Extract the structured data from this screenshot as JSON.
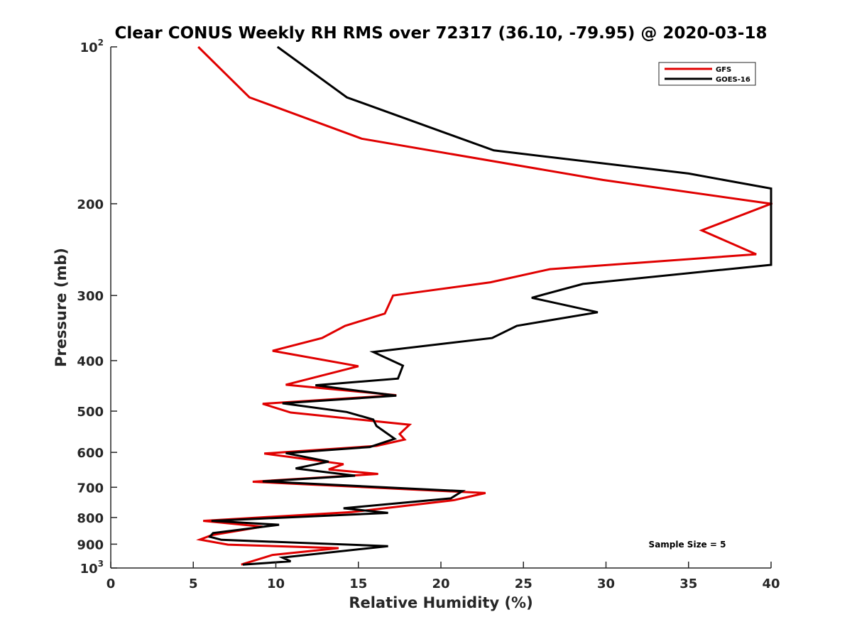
{
  "chart_data": {
    "type": "line",
    "title": "Clear CONUS Weekly RH RMS over 72317 (36.10, -79.95) @ 2020-03-18",
    "xlabel": "Relative Humidity (%)",
    "ylabel": "Pressure (mb)",
    "xlim": [
      0,
      40
    ],
    "ylim": [
      100,
      1000
    ],
    "yscale": "log",
    "y_reversed": true,
    "x_ticks": [
      0,
      5,
      10,
      15,
      20,
      25,
      30,
      35,
      40
    ],
    "y_ticks": [
      100,
      200,
      300,
      400,
      500,
      600,
      700,
      800,
      900,
      1000
    ],
    "y_tick_labels": [
      {
        "base": "10",
        "sup": "2"
      },
      {
        "base": "200",
        "sup": ""
      },
      {
        "base": "300",
        "sup": ""
      },
      {
        "base": "400",
        "sup": ""
      },
      {
        "base": "500",
        "sup": ""
      },
      {
        "base": "600",
        "sup": ""
      },
      {
        "base": "700",
        "sup": ""
      },
      {
        "base": "800",
        "sup": ""
      },
      {
        "base": "900",
        "sup": ""
      },
      {
        "base": "10",
        "sup": "3"
      }
    ],
    "grid": false,
    "legend_position": "top-right",
    "annotation": "Sample Size = 5",
    "series": [
      {
        "name": "GFS",
        "color": "#e00000",
        "points": [
          [
            5.3,
            100
          ],
          [
            8.4,
            125
          ],
          [
            15.2,
            150
          ],
          [
            29.8,
            180
          ],
          [
            40,
            200
          ],
          [
            35.8,
            225
          ],
          [
            39.1,
            250
          ],
          [
            26.6,
            267
          ],
          [
            23,
            283
          ],
          [
            17.1,
            300
          ],
          [
            16.6,
            325
          ],
          [
            14.2,
            343
          ],
          [
            12.8,
            362
          ],
          [
            9.8,
            383
          ],
          [
            15.0,
            410
          ],
          [
            10.6,
            445
          ],
          [
            17.3,
            466
          ],
          [
            9.2,
            484
          ],
          [
            10.9,
            503
          ],
          [
            18.1,
            531
          ],
          [
            17.5,
            553
          ],
          [
            17.8,
            567
          ],
          [
            16.1,
            583
          ],
          [
            9.3,
            603
          ],
          [
            14.1,
            632
          ],
          [
            13.2,
            647
          ],
          [
            16.2,
            660
          ],
          [
            8.6,
            683
          ],
          [
            22.7,
            718
          ],
          [
            20.8,
            741
          ],
          [
            14.6,
            781
          ],
          [
            5.6,
            812
          ],
          [
            9.2,
            833
          ],
          [
            6.1,
            865
          ],
          [
            5.4,
            882
          ],
          [
            7.1,
            902
          ],
          [
            13.8,
            916
          ],
          [
            9.8,
            944
          ],
          [
            7.9,
            985
          ]
        ]
      },
      {
        "name": "GOES-16",
        "color": "#000000",
        "points": [
          [
            10.1,
            100
          ],
          [
            14.3,
            125
          ],
          [
            23.2,
            158
          ],
          [
            35,
            175
          ],
          [
            40,
            187
          ],
          [
            40,
            262
          ],
          [
            36.9,
            268
          ],
          [
            28.6,
            285
          ],
          [
            25.5,
            303
          ],
          [
            29.5,
            323
          ],
          [
            24.6,
            343
          ],
          [
            23.1,
            362
          ],
          [
            15.9,
            385
          ],
          [
            17.7,
            409
          ],
          [
            17.4,
            433
          ],
          [
            12.4,
            446
          ],
          [
            17.3,
            467
          ],
          [
            10.4,
            483
          ],
          [
            14.3,
            502
          ],
          [
            15.9,
            519
          ],
          [
            16.1,
            534
          ],
          [
            17.2,
            565
          ],
          [
            15.7,
            586
          ],
          [
            10.6,
            602
          ],
          [
            13.2,
            625
          ],
          [
            11.2,
            644
          ],
          [
            14.8,
            665
          ],
          [
            9.2,
            682
          ],
          [
            21.3,
            712
          ],
          [
            20.6,
            735
          ],
          [
            14.1,
            768
          ],
          [
            16.8,
            784
          ],
          [
            6.1,
            812
          ],
          [
            10.2,
            826
          ],
          [
            6.2,
            857
          ],
          [
            6.0,
            871
          ],
          [
            6.7,
            883
          ],
          [
            16.8,
            908
          ],
          [
            10.4,
            955
          ],
          [
            10.9,
            971
          ],
          [
            8.0,
            985
          ]
        ]
      }
    ]
  }
}
